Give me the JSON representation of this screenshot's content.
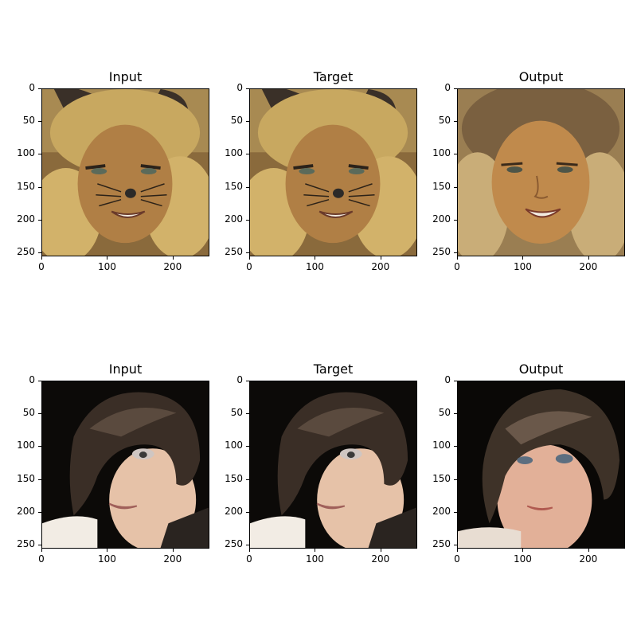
{
  "figure": {
    "panels": [
      {
        "title": "Input",
        "image": "face-blonde-whiskers"
      },
      {
        "title": "Target",
        "image": "face-blonde-whiskers"
      },
      {
        "title": "Output",
        "image": "face-blonde-generated"
      },
      {
        "title": "Input",
        "image": "face-dark-short-hair"
      },
      {
        "title": "Target",
        "image": "face-dark-short-hair"
      },
      {
        "title": "Output",
        "image": "face-dark-generated"
      }
    ],
    "y_ticks": [
      "0",
      "50",
      "100",
      "150",
      "200",
      "250"
    ],
    "x_ticks": [
      "0",
      "100",
      "200"
    ]
  }
}
